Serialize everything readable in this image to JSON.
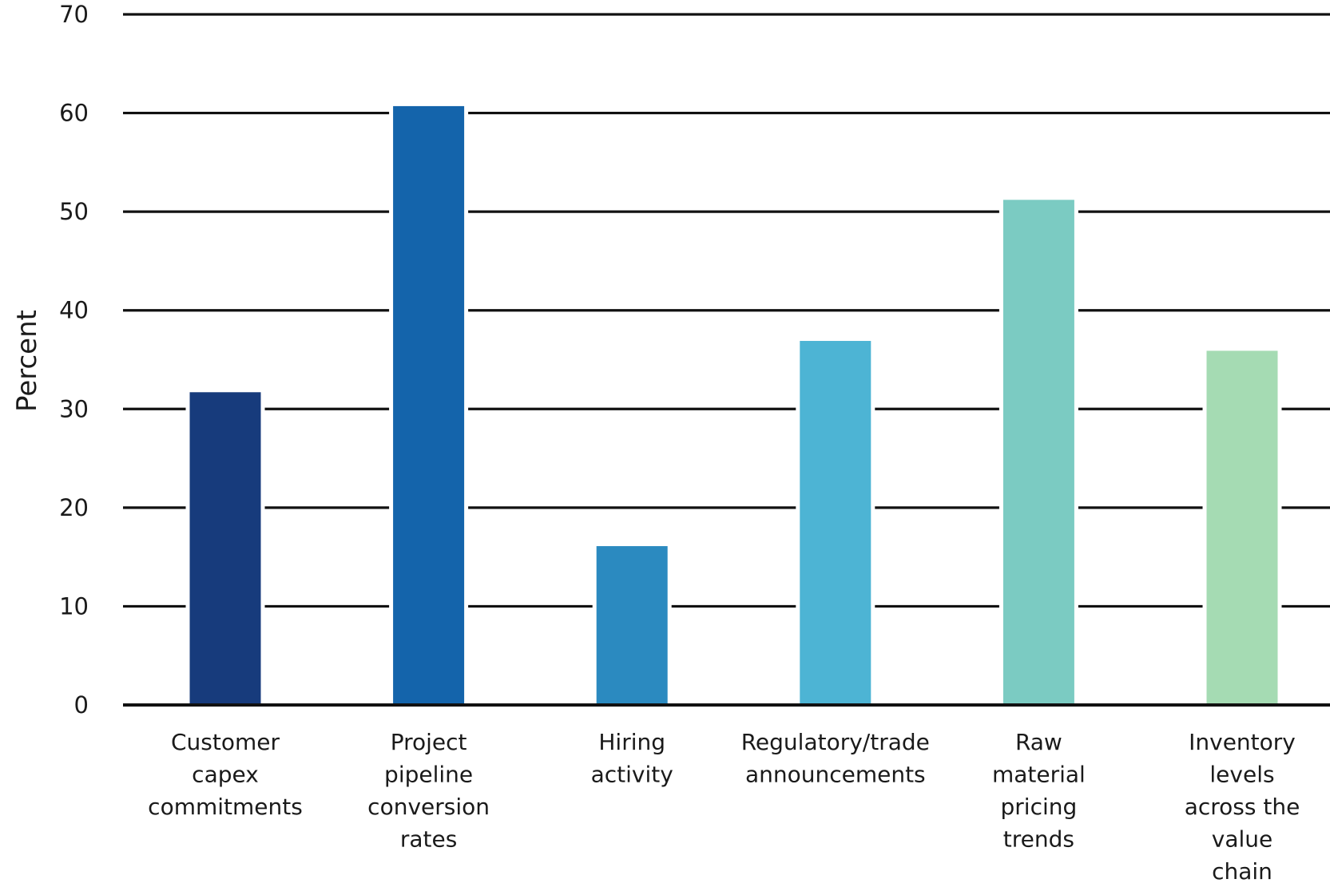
{
  "chart_data": {
    "type": "bar",
    "ylabel": "Percent",
    "ylim": [
      0,
      70
    ],
    "yticks": [
      0,
      10,
      20,
      30,
      40,
      50,
      60,
      70
    ],
    "grid": true,
    "categories": [
      "Customer capex commitments",
      "Project pipeline conversion rates",
      "Hiring activity",
      "Regulatory/trade announcements",
      "Raw material pricing trends",
      "Inventory levels across the value chain"
    ],
    "category_lines": [
      [
        "Customer",
        "capex",
        "commitments"
      ],
      [
        "Project",
        "pipeline",
        "conversion",
        "rates"
      ],
      [
        "Hiring",
        "activity"
      ],
      [
        "Regulatory/trade",
        "announcements"
      ],
      [
        "Raw",
        "material",
        "pricing",
        "trends"
      ],
      [
        "Inventory",
        "levels",
        "across the",
        "value",
        "chain"
      ]
    ],
    "values": [
      31.7,
      60.7,
      16.1,
      36.9,
      51.2,
      35.9
    ],
    "colors": [
      "#173b7c",
      "#1464ab",
      "#2b8ac0",
      "#4db4d4",
      "#7bcbc2",
      "#a5dbb3"
    ]
  }
}
